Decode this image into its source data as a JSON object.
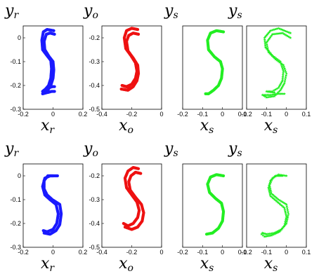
{
  "chart_data": [
    {
      "id": "r1c1",
      "type": "scatter",
      "color": "#1a1aff",
      "marker": "dot",
      "xlabel": {
        "base": "x",
        "sub": "r"
      },
      "ylabel": {
        "base": "y",
        "sub": "r"
      },
      "xlim": [
        -0.2,
        0.2
      ],
      "ylim": [
        -0.3,
        0.05
      ],
      "xticks": [
        -0.2,
        0,
        0.2
      ],
      "xtick_labels": [
        "-0.2",
        "0",
        "0.2"
      ],
      "yticks": [
        -0.3,
        -0.2,
        -0.1,
        0
      ],
      "ytick_labels": [
        "-0.3",
        "-0.2",
        "-0.1",
        "0"
      ],
      "paths": [
        [
          [
            0.005,
            0.03
          ],
          [
            -0.04,
            0.035
          ],
          [
            -0.065,
            0.025
          ],
          [
            -0.075,
            -0.01
          ],
          [
            -0.07,
            -0.05
          ],
          [
            -0.04,
            -0.075
          ],
          [
            -0.015,
            -0.095
          ],
          [
            -0.01,
            -0.13
          ],
          [
            -0.015,
            -0.17
          ],
          [
            -0.03,
            -0.2
          ],
          [
            -0.05,
            -0.215
          ],
          [
            -0.07,
            -0.225
          ],
          [
            -0.055,
            -0.22
          ],
          [
            -0.03,
            -0.21
          ],
          [
            -0.005,
            -0.205
          ],
          [
            0.01,
            -0.205
          ]
        ],
        [
          [
            0.01,
            0.015
          ],
          [
            -0.02,
            0.02
          ],
          [
            -0.045,
            0.015
          ],
          [
            -0.06,
            -0.015
          ],
          [
            -0.055,
            -0.05
          ],
          [
            -0.025,
            -0.08
          ],
          [
            0.0,
            -0.1
          ],
          [
            0.005,
            -0.135
          ],
          [
            0.0,
            -0.17
          ],
          [
            -0.015,
            -0.2
          ],
          [
            -0.04,
            -0.225
          ],
          [
            -0.07,
            -0.235
          ],
          [
            -0.04,
            -0.23
          ],
          [
            -0.01,
            -0.225
          ],
          [
            0.01,
            -0.225
          ]
        ]
      ]
    },
    {
      "id": "r1c2",
      "type": "scatter",
      "color": "#ee1111",
      "marker": "dot",
      "xlabel": {
        "base": "x",
        "sub": "o"
      },
      "ylabel": {
        "base": "y",
        "sub": "o"
      },
      "xlim": [
        -0.4,
        0
      ],
      "ylim": [
        -0.5,
        -0.15
      ],
      "xticks": [
        -0.4,
        -0.2,
        0
      ],
      "xtick_labels": [
        "-0.4",
        "-0.2",
        "0"
      ],
      "yticks": [
        -0.5,
        -0.4,
        -0.3,
        -0.2
      ],
      "ytick_labels": [
        "-0.5",
        "-0.4",
        "-0.3",
        "-0.2"
      ],
      "paths": [
        [
          [
            -0.16,
            -0.165
          ],
          [
            -0.2,
            -0.16
          ],
          [
            -0.235,
            -0.17
          ],
          [
            -0.25,
            -0.2
          ],
          [
            -0.24,
            -0.245
          ],
          [
            -0.205,
            -0.275
          ],
          [
            -0.175,
            -0.305
          ],
          [
            -0.165,
            -0.34
          ],
          [
            -0.175,
            -0.37
          ],
          [
            -0.2,
            -0.395
          ],
          [
            -0.235,
            -0.405
          ],
          [
            -0.265,
            -0.4
          ],
          [
            -0.24,
            -0.405
          ],
          [
            -0.205,
            -0.41
          ]
        ],
        [
          [
            -0.155,
            -0.185
          ],
          [
            -0.19,
            -0.18
          ],
          [
            -0.22,
            -0.19
          ],
          [
            -0.235,
            -0.215
          ],
          [
            -0.225,
            -0.255
          ],
          [
            -0.19,
            -0.285
          ],
          [
            -0.16,
            -0.315
          ],
          [
            -0.155,
            -0.35
          ],
          [
            -0.165,
            -0.38
          ],
          [
            -0.19,
            -0.405
          ],
          [
            -0.225,
            -0.42
          ],
          [
            -0.27,
            -0.415
          ]
        ]
      ]
    },
    {
      "id": "r1c3",
      "type": "scatter",
      "color": "#22ee22",
      "marker": "dot",
      "xlabel": {
        "base": "x",
        "sub": "s"
      },
      "ylabel": {
        "base": "y",
        "sub": "s"
      },
      "xlim": [
        -0.2,
        0.1
      ],
      "ylim": [
        -0.3,
        0.05
      ],
      "xticks": [
        -0.2,
        -0.1,
        0,
        0.1
      ],
      "xtick_labels": [
        "-0.2",
        "-0.1",
        "0",
        "0.1"
      ],
      "yticks": [],
      "ytick_labels": [],
      "paths": [
        [
          [
            0.005,
            0.025
          ],
          [
            -0.03,
            0.03
          ],
          [
            -0.06,
            0.02
          ],
          [
            -0.075,
            -0.01
          ],
          [
            -0.07,
            -0.05
          ],
          [
            -0.04,
            -0.08
          ],
          [
            -0.01,
            -0.1
          ],
          [
            0.0,
            -0.13
          ],
          [
            -0.005,
            -0.17
          ],
          [
            -0.02,
            -0.2
          ],
          [
            -0.045,
            -0.22
          ],
          [
            -0.07,
            -0.235
          ],
          [
            -0.085,
            -0.235
          ]
        ]
      ]
    },
    {
      "id": "r1c4",
      "type": "scatter",
      "color": "#22ee22",
      "marker": "star",
      "xlabel": {
        "base": "x",
        "sub": "s"
      },
      "ylabel": {
        "base": "y",
        "sub": "s"
      },
      "xlim": [
        -0.2,
        0.1
      ],
      "ylim": [
        -0.3,
        0.05
      ],
      "xticks": [
        -0.2,
        -0.1,
        0,
        0.1
      ],
      "xtick_labels": [
        "-0.2",
        "-0.1",
        "0",
        "0.1"
      ],
      "yticks": [],
      "ytick_labels": [],
      "paths": [
        [
          [
            0.02,
            0.02
          ],
          [
            -0.04,
            0.04
          ],
          [
            -0.08,
            0.03
          ],
          [
            -0.11,
            0.0
          ],
          [
            -0.105,
            -0.04
          ],
          [
            -0.07,
            -0.075
          ],
          [
            -0.03,
            -0.1
          ],
          [
            -0.015,
            -0.14
          ],
          [
            -0.02,
            -0.18
          ],
          [
            -0.04,
            -0.21
          ],
          [
            -0.07,
            -0.225
          ],
          [
            -0.1,
            -0.225
          ],
          [
            -0.06,
            -0.23
          ]
        ],
        [
          [
            0.02,
            0.0
          ],
          [
            -0.02,
            0.02
          ],
          [
            -0.07,
            0.015
          ],
          [
            -0.1,
            -0.02
          ],
          [
            -0.09,
            -0.06
          ],
          [
            -0.055,
            -0.09
          ],
          [
            -0.015,
            -0.115
          ],
          [
            0.0,
            -0.15
          ],
          [
            -0.01,
            -0.19
          ],
          [
            -0.03,
            -0.22
          ],
          [
            -0.06,
            -0.245
          ],
          [
            -0.1,
            -0.25
          ],
          [
            -0.12,
            -0.24
          ],
          [
            -0.08,
            -0.24
          ],
          [
            -0.04,
            -0.235
          ],
          [
            -0.01,
            -0.235
          ]
        ]
      ]
    },
    {
      "id": "r2c1",
      "type": "scatter",
      "color": "#1a1aff",
      "marker": "dot",
      "xlabel": {
        "base": "x",
        "sub": "r"
      },
      "ylabel": {
        "base": "y",
        "sub": "r"
      },
      "xlim": [
        -0.2,
        0.2
      ],
      "ylim": [
        -0.3,
        0.05
      ],
      "xticks": [
        -0.2,
        0,
        0.2
      ],
      "xtick_labels": [
        "-0.2",
        "0",
        "0.2"
      ],
      "yticks": [
        -0.3,
        -0.2,
        -0.1,
        0
      ],
      "ytick_labels": [
        "-0.3",
        "-0.2",
        "-0.1",
        "0"
      ],
      "paths": [
        [
          [
            0.03,
            0.0
          ],
          [
            -0.02,
            0.0
          ],
          [
            -0.055,
            -0.01
          ],
          [
            -0.07,
            -0.045
          ],
          [
            -0.055,
            -0.08
          ],
          [
            -0.02,
            -0.1
          ],
          [
            0.02,
            -0.12
          ],
          [
            0.035,
            -0.16
          ],
          [
            0.025,
            -0.2
          ],
          [
            0.0,
            -0.225
          ],
          [
            -0.04,
            -0.235
          ],
          [
            -0.065,
            -0.23
          ]
        ],
        [
          [
            0.0,
            0.0
          ],
          [
            -0.035,
            0.0
          ],
          [
            -0.06,
            -0.02
          ],
          [
            -0.06,
            -0.055
          ],
          [
            -0.04,
            -0.08
          ],
          [
            -0.005,
            -0.1
          ],
          [
            0.045,
            -0.12
          ],
          [
            0.055,
            -0.16
          ],
          [
            0.045,
            -0.205
          ],
          [
            0.02,
            -0.23
          ],
          [
            -0.02,
            -0.245
          ],
          [
            -0.06,
            -0.24
          ]
        ]
      ]
    },
    {
      "id": "r2c2",
      "type": "scatter",
      "color": "#ee1111",
      "marker": "dot",
      "xlabel": {
        "base": "x",
        "sub": "o"
      },
      "ylabel": {
        "base": "y",
        "sub": "o"
      },
      "xlim": [
        -0.4,
        0
      ],
      "ylim": [
        -0.5,
        -0.15
      ],
      "xticks": [
        -0.4,
        -0.2,
        0
      ],
      "xtick_labels": [
        "-0.4",
        "-0.2",
        "0"
      ],
      "yticks": [
        -0.5,
        -0.4,
        -0.3,
        -0.2
      ],
      "ytick_labels": [
        "-0.5",
        "-0.4",
        "-0.3",
        "-0.2"
      ],
      "paths": [
        [
          [
            -0.155,
            -0.17
          ],
          [
            -0.19,
            -0.165
          ],
          [
            -0.225,
            -0.18
          ],
          [
            -0.245,
            -0.21
          ],
          [
            -0.235,
            -0.25
          ],
          [
            -0.2,
            -0.28
          ],
          [
            -0.165,
            -0.31
          ],
          [
            -0.15,
            -0.345
          ],
          [
            -0.16,
            -0.375
          ],
          [
            -0.19,
            -0.4
          ],
          [
            -0.225,
            -0.41
          ],
          [
            -0.255,
            -0.4
          ]
        ],
        [
          [
            -0.14,
            -0.19
          ],
          [
            -0.175,
            -0.185
          ],
          [
            -0.205,
            -0.2
          ],
          [
            -0.22,
            -0.225
          ],
          [
            -0.21,
            -0.26
          ],
          [
            -0.175,
            -0.29
          ],
          [
            -0.135,
            -0.32
          ],
          [
            -0.12,
            -0.355
          ],
          [
            -0.13,
            -0.39
          ],
          [
            -0.16,
            -0.415
          ],
          [
            -0.2,
            -0.425
          ],
          [
            -0.245,
            -0.415
          ]
        ]
      ]
    },
    {
      "id": "r2c3",
      "type": "scatter",
      "color": "#22ee22",
      "marker": "dot",
      "xlabel": {
        "base": "x",
        "sub": "s"
      },
      "ylabel": {
        "base": "y",
        "sub": "s"
      },
      "xlim": [
        -0.2,
        0.1
      ],
      "ylim": [
        -0.3,
        0.05
      ],
      "xticks": [
        -0.2,
        -0.1,
        0,
        0.1
      ],
      "xtick_labels": [
        "-0.2",
        "-0.1",
        "0",
        "0.1"
      ],
      "yticks": [],
      "ytick_labels": [],
      "paths": [
        [
          [
            0.005,
            0.0
          ],
          [
            -0.03,
            0.005
          ],
          [
            -0.06,
            -0.005
          ],
          [
            -0.075,
            -0.035
          ],
          [
            -0.065,
            -0.07
          ],
          [
            -0.035,
            -0.095
          ],
          [
            -0.005,
            -0.115
          ],
          [
            0.005,
            -0.15
          ],
          [
            0.0,
            -0.19
          ],
          [
            -0.02,
            -0.22
          ],
          [
            -0.05,
            -0.24
          ],
          [
            -0.08,
            -0.245
          ]
        ]
      ]
    },
    {
      "id": "r2c4",
      "type": "scatter",
      "color": "#22ee22",
      "marker": "star",
      "xlabel": {
        "base": "x",
        "sub": "s"
      },
      "ylabel": {
        "base": "y",
        "sub": "s"
      },
      "xlim": [
        -0.2,
        0.1
      ],
      "ylim": [
        -0.3,
        0.05
      ],
      "xticks": [
        -0.2,
        -0.1,
        0,
        0.1
      ],
      "xtick_labels": [
        "-0.2",
        "-0.1",
        "0",
        "0.1"
      ],
      "yticks": [],
      "ytick_labels": [],
      "paths": [
        [
          [
            0.0,
            0.0
          ],
          [
            -0.04,
            0.005
          ],
          [
            -0.07,
            -0.01
          ],
          [
            -0.085,
            -0.04
          ],
          [
            -0.075,
            -0.075
          ],
          [
            -0.04,
            -0.1
          ],
          [
            0.0,
            -0.12
          ],
          [
            0.01,
            -0.16
          ],
          [
            0.0,
            -0.2
          ],
          [
            -0.025,
            -0.225
          ],
          [
            -0.06,
            -0.24
          ],
          [
            -0.1,
            -0.245
          ],
          [
            -0.12,
            -0.24
          ]
        ],
        [
          [
            -0.02,
            0.0
          ],
          [
            -0.055,
            0.0
          ],
          [
            -0.08,
            -0.02
          ],
          [
            -0.09,
            -0.05
          ],
          [
            -0.08,
            -0.085
          ],
          [
            -0.045,
            -0.11
          ],
          [
            -0.01,
            -0.135
          ],
          [
            0.0,
            -0.17
          ],
          [
            -0.01,
            -0.21
          ],
          [
            -0.035,
            -0.235
          ],
          [
            -0.075,
            -0.25
          ],
          [
            -0.11,
            -0.255
          ],
          [
            -0.125,
            -0.245
          ]
        ]
      ]
    }
  ]
}
